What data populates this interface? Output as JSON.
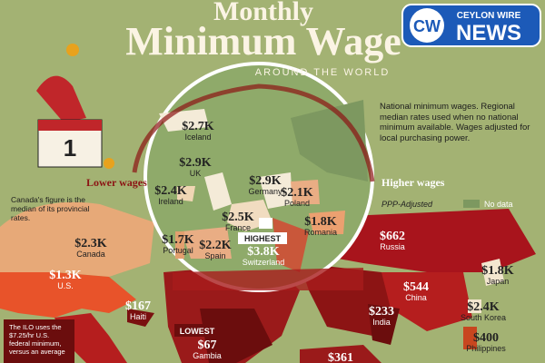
{
  "header": {
    "title_line1": "Monthly",
    "title_line2": "Minimum Wage",
    "subtitle": "AROUND THE WORLD"
  },
  "logo": {
    "mark": "CW",
    "brand": "CEYLON WIRE",
    "name": "NEWS"
  },
  "calendar_day": "1",
  "note": "National minimum wages. Regional median rates used when no national minimum available. Wages adjusted for local purchasing power.",
  "legend": {
    "low": "Lower wages",
    "high": "Higher wages",
    "adjust": "PPP-Adjusted",
    "no_data": "No data"
  },
  "callouts": {
    "canada": "Canada's figure is the median of its provincial rates.",
    "ilo": "The ILO uses the $7.25/hr U.S. federal minimum, versus an average"
  },
  "badges": {
    "highest": "HIGHEST",
    "lowest": "LOWEST"
  },
  "labels": [
    {
      "value": "$2.7K",
      "name": "Iceland"
    },
    {
      "value": "$2.9K",
      "name": "UK"
    },
    {
      "value": "$2.9K",
      "name": "Germany"
    },
    {
      "value": "$2.4K",
      "name": "Ireland"
    },
    {
      "value": "$2.1K",
      "name": "Poland"
    },
    {
      "value": "$2.5K",
      "name": "France"
    },
    {
      "value": "$1.8K",
      "name": "Romania"
    },
    {
      "value": "$1.7K",
      "name": "Portugal"
    },
    {
      "value": "$2.2K",
      "name": "Spain"
    },
    {
      "value": "$3.8K",
      "name": "Switzerland"
    },
    {
      "value": "$662",
      "name": "Russia"
    },
    {
      "value": "$2.3K",
      "name": "Canada"
    },
    {
      "value": "$1.3K",
      "name": "U.S."
    },
    {
      "value": "$167",
      "name": "Haiti"
    },
    {
      "value": "$67",
      "name": "Gambia"
    },
    {
      "value": "$233",
      "name": "India"
    },
    {
      "value": "$544",
      "name": "China"
    },
    {
      "value": "$1.8K",
      "name": "Japan"
    },
    {
      "value": "$2.4K",
      "name": "South Korea"
    },
    {
      "value": "$400",
      "name": "Philippines"
    },
    {
      "value": "$361"
    }
  ]
}
